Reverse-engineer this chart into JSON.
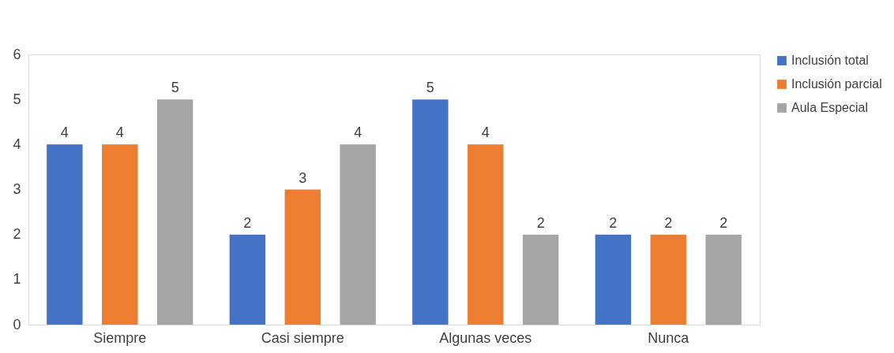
{
  "chart_data": {
    "type": "bar",
    "categories": [
      "Siempre",
      "Casi siempre",
      "Algunas veces",
      "Nunca"
    ],
    "series": [
      {
        "name": "Inclusión total",
        "color": "#4472c4",
        "values": [
          4,
          2,
          5,
          2
        ]
      },
      {
        "name": "Inclusión parcial",
        "color": "#ed7d31",
        "values": [
          4,
          3,
          4,
          2
        ]
      },
      {
        "name": "Aula Especial",
        "color": "#a5a5a5",
        "values": [
          5,
          4,
          2,
          2
        ]
      }
    ],
    "ylim": [
      0,
      6
    ],
    "yticks": [
      0,
      1,
      2,
      3,
      4,
      5,
      6
    ],
    "grid": false,
    "legend": "right",
    "data_labels": true
  }
}
